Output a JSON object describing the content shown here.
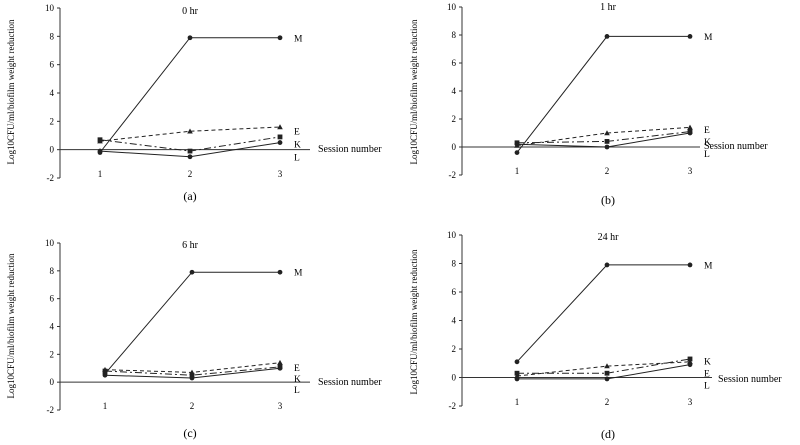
{
  "chart_data": [
    {
      "type": "line",
      "title": "0 hr",
      "subtitle": "(a)",
      "xlabel": "Session number",
      "ylabel": "Log10CFU/ml/biofilm weight reduction",
      "categories": [
        "1",
        "2",
        "3"
      ],
      "ylim": [
        -2,
        10
      ],
      "yticks": [
        "-2",
        "0",
        "2",
        "4",
        "6",
        "8",
        "10"
      ],
      "series": [
        {
          "name": "M",
          "values": [
            -0.2,
            7.9,
            7.9
          ]
        },
        {
          "name": "E",
          "values": [
            0.6,
            1.3,
            1.6
          ]
        },
        {
          "name": "K",
          "values": [
            0.7,
            -0.1,
            0.9
          ]
        },
        {
          "name": "L",
          "values": [
            -0.1,
            -0.5,
            0.5
          ]
        }
      ]
    },
    {
      "type": "line",
      "title": "1 hr",
      "subtitle": "(b)",
      "xlabel": "Session number",
      "ylabel": "Log10CFU/ml/biofilm weight reduction",
      "categories": [
        "1",
        "2",
        "3"
      ],
      "ylim": [
        -2,
        10
      ],
      "yticks": [
        "-2",
        "0",
        "2",
        "4",
        "6",
        "8",
        "10"
      ],
      "series": [
        {
          "name": "M",
          "values": [
            -0.4,
            7.9,
            7.9
          ]
        },
        {
          "name": "E",
          "values": [
            0.1,
            1.0,
            1.4
          ]
        },
        {
          "name": "K",
          "values": [
            0.3,
            0.4,
            1.1
          ]
        },
        {
          "name": "L",
          "values": [
            0.2,
            0.0,
            1.0
          ]
        }
      ]
    },
    {
      "type": "line",
      "title": "6 hr",
      "subtitle": "(c)",
      "xlabel": "Session number",
      "ylabel": "Log10CFU/ml/biofilm weight reduction",
      "categories": [
        "1",
        "2",
        "3"
      ],
      "ylim": [
        -2,
        10
      ],
      "yticks": [
        "-2",
        "0",
        "2",
        "4",
        "6",
        "8",
        "10"
      ],
      "series": [
        {
          "name": "M",
          "values": [
            0.6,
            7.9,
            7.9
          ]
        },
        {
          "name": "E",
          "values": [
            0.9,
            0.7,
            1.4
          ]
        },
        {
          "name": "K",
          "values": [
            0.8,
            0.5,
            1.1
          ]
        },
        {
          "name": "L",
          "values": [
            0.5,
            0.3,
            1.0
          ]
        }
      ]
    },
    {
      "type": "line",
      "title": "24 hr",
      "subtitle": "(d)",
      "xlabel": "Session number",
      "ylabel": "Log10CFU/ml/biofilm weight reduction",
      "categories": [
        "1",
        "2",
        "3"
      ],
      "ylim": [
        -2,
        10
      ],
      "yticks": [
        "-2",
        "0",
        "2",
        "4",
        "6",
        "8",
        "10"
      ],
      "series": [
        {
          "name": "M",
          "values": [
            1.1,
            7.9,
            7.9
          ]
        },
        {
          "name": "K",
          "values": [
            0.3,
            0.3,
            1.3
          ]
        },
        {
          "name": "E",
          "values": [
            0.1,
            0.8,
            1.1
          ]
        },
        {
          "name": "L",
          "values": [
            -0.1,
            -0.1,
            0.9
          ]
        }
      ]
    }
  ],
  "style": {
    "series": {
      "M": {
        "marker": "circle",
        "dash": ""
      },
      "E": {
        "marker": "triangle",
        "dash": "4,3"
      },
      "K": {
        "marker": "square",
        "dash": "7,3,2,3"
      },
      "L": {
        "marker": "circle",
        "dash": ""
      }
    },
    "line_color": "#222222",
    "axis_color": "#333333"
  }
}
